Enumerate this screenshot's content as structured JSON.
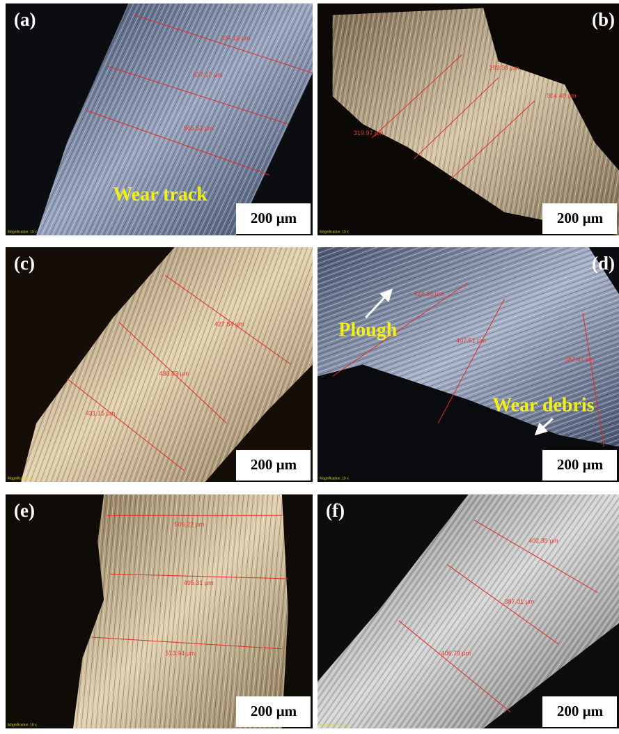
{
  "panels": [
    {
      "label": "(a)",
      "scale_bar": "200 µm",
      "magnification": "Magnification: 10 x",
      "measurements": [
        "534.19 µm",
        "637.17 µm",
        "565.52 µm"
      ],
      "annotations": [
        "Wear track"
      ]
    },
    {
      "label": "(b)",
      "scale_bar": "200 µm",
      "magnification": "Magnification: 10 x",
      "measurements": [
        "319.97 µm",
        "293.39 µm",
        "314.48 µm"
      ]
    },
    {
      "label": "(c)",
      "scale_bar": "200 µm",
      "magnification": "Magnification: 10 x",
      "measurements": [
        "427.84 µm",
        "438.83 µm",
        "431.15 µm"
      ]
    },
    {
      "label": "(d)",
      "scale_bar": "200 µm",
      "magnification": "Magnification: 10 x",
      "measurements": [
        "424.96 µm",
        "407.51 µm",
        "387.47 µm"
      ],
      "annotations": [
        "Plough",
        "Wear debris"
      ]
    },
    {
      "label": "(e)",
      "scale_bar": "200 µm",
      "magnification": "Magnification: 10 x",
      "measurements": [
        "506.22 µm",
        "495.31 µm",
        "513.94 µm"
      ]
    },
    {
      "label": "(f)",
      "scale_bar": "200 µm",
      "magnification": "Magnification: 10 x",
      "measurements": [
        "402.35 µm",
        "387.01 µm",
        "406.79 µm"
      ]
    }
  ]
}
